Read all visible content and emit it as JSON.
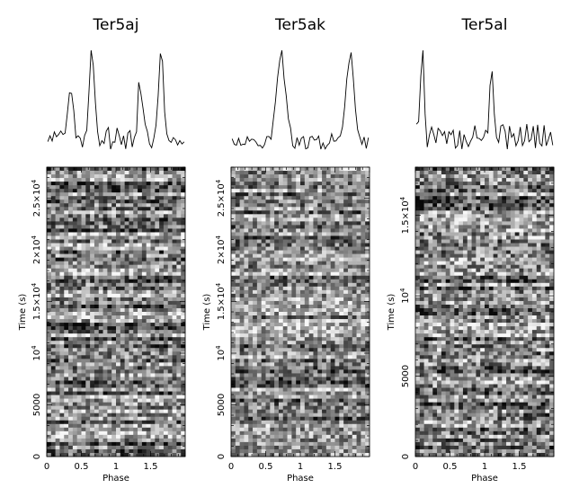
{
  "chart_data": [
    {
      "type": "heatmap",
      "title": "Ter5aj",
      "xlabel": "Phase",
      "ylabel": "Time (s)",
      "xlim": [
        0,
        2
      ],
      "ylim": [
        0,
        28000
      ],
      "x_ticks": [
        {
          "value": 0,
          "label": "0"
        },
        {
          "value": 0.5,
          "label": "0.5"
        },
        {
          "value": 1,
          "label": "1"
        },
        {
          "value": 1.5,
          "label": "1.5"
        }
      ],
      "y_ticks": [
        {
          "value": 0,
          "base": "0",
          "sup": ""
        },
        {
          "value": 5000,
          "base": "5000",
          "sup": ""
        },
        {
          "value": 10000,
          "base": "10",
          "sup": "4"
        },
        {
          "value": 15000,
          "base": "1.5×10",
          "sup": "4"
        },
        {
          "value": 20000,
          "base": "2×10",
          "sup": "4"
        },
        {
          "value": 25000,
          "base": "2.5×10",
          "sup": "4"
        }
      ],
      "profile": {
        "description_of_shape": "double-peaked pulse repeated twice in phase",
        "peaks_phase": [
          0.35,
          0.65,
          1.35,
          1.65
        ],
        "peaks_relative_height": [
          0.55,
          1.0,
          0.55,
          1.0
        ],
        "peak_width": 0.035,
        "noise_level": 0.12,
        "baseline": 0.08
      },
      "greyscale": {
        "mean_level": 0.5,
        "row_variation": 0.25,
        "cell_noise": 0.35
      },
      "grid": false
    },
    {
      "type": "heatmap",
      "title": "Ter5ak",
      "xlabel": "Phase",
      "ylabel": "Time (s)",
      "xlim": [
        0,
        2
      ],
      "ylim": [
        0,
        28000
      ],
      "x_ticks": [
        {
          "value": 0,
          "label": "0"
        },
        {
          "value": 0.5,
          "label": "0.5"
        },
        {
          "value": 1,
          "label": "1"
        },
        {
          "value": 1.5,
          "label": "1.5"
        }
      ],
      "y_ticks": [
        {
          "value": 0,
          "base": "0",
          "sup": ""
        },
        {
          "value": 5000,
          "base": "5000",
          "sup": ""
        },
        {
          "value": 10000,
          "base": "10",
          "sup": "4"
        },
        {
          "value": 15000,
          "base": "1.5×10",
          "sup": "4"
        },
        {
          "value": 20000,
          "base": "2×10",
          "sup": "4"
        },
        {
          "value": 25000,
          "base": "2.5×10",
          "sup": "4"
        }
      ],
      "profile": {
        "description_of_shape": "single broad pulse repeated twice in phase",
        "peaks_phase": [
          0.72,
          1.72
        ],
        "peaks_relative_height": [
          1.0,
          1.0
        ],
        "peak_width": 0.06,
        "noise_level": 0.09,
        "baseline": 0.08
      },
      "greyscale": {
        "mean_level": 0.52,
        "row_variation": 0.22,
        "cell_noise": 0.33
      },
      "grid": false
    },
    {
      "type": "heatmap",
      "title": "Ter5al",
      "xlabel": "Phase",
      "ylabel": "Time (s)",
      "xlim": [
        0,
        2
      ],
      "ylim": [
        0,
        18000
      ],
      "x_ticks": [
        {
          "value": 0,
          "label": "0"
        },
        {
          "value": 0.5,
          "label": "0.5"
        },
        {
          "value": 1,
          "label": "1"
        },
        {
          "value": 1.5,
          "label": "1.5"
        }
      ],
      "y_ticks": [
        {
          "value": 0,
          "base": "0",
          "sup": ""
        },
        {
          "value": 5000,
          "base": "5000",
          "sup": ""
        },
        {
          "value": 10000,
          "base": "10",
          "sup": "4"
        },
        {
          "value": 15000,
          "base": "1.5×10",
          "sup": "4"
        }
      ],
      "profile": {
        "description_of_shape": "narrow single pulse repeated twice in phase",
        "peaks_phase": [
          0.1,
          1.1
        ],
        "peaks_relative_height": [
          1.0,
          1.0
        ],
        "peak_width": 0.025,
        "noise_level": 0.16,
        "baseline": 0.15
      },
      "greyscale": {
        "mean_level": 0.5,
        "row_variation": 0.2,
        "cell_noise": 0.38
      },
      "grid": false
    }
  ]
}
